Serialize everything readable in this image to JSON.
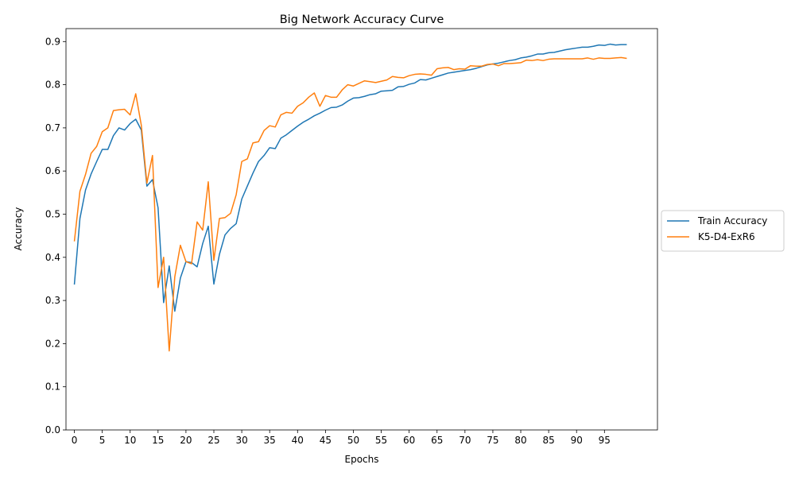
{
  "chart_data": {
    "type": "line",
    "title": "Big Network Accuracy Curve",
    "xlabel": "Epochs",
    "ylabel": "Accuracy",
    "xlim": [
      -1.5,
      104.5
    ],
    "ylim": [
      0.0,
      0.93
    ],
    "x_ticks": [
      0,
      5,
      10,
      15,
      20,
      25,
      30,
      35,
      40,
      45,
      50,
      55,
      60,
      65,
      70,
      75,
      80,
      85,
      90,
      95
    ],
    "y_ticks": [
      0.0,
      0.1,
      0.2,
      0.3,
      0.4,
      0.5,
      0.6,
      0.7,
      0.8,
      0.9
    ],
    "y_tick_labels": [
      "0.0",
      "0.1",
      "0.2",
      "0.3",
      "0.4",
      "0.5",
      "0.6",
      "0.7",
      "0.8",
      "0.9"
    ],
    "grid": false,
    "legend_position": "outside-right",
    "series": [
      {
        "name": "Train Accuracy",
        "color": "#1f77b4",
        "values": [
          0.337,
          0.49,
          0.556,
          0.593,
          0.622,
          0.65,
          0.65,
          0.682,
          0.7,
          0.695,
          0.71,
          0.72,
          0.695,
          0.565,
          0.58,
          0.515,
          0.295,
          0.38,
          0.275,
          0.352,
          0.39,
          0.388,
          0.378,
          0.432,
          0.472,
          0.338,
          0.407,
          0.452,
          0.467,
          0.478,
          0.535,
          0.565,
          0.595,
          0.622,
          0.636,
          0.654,
          0.652,
          0.676,
          0.684,
          0.694,
          0.704,
          0.713,
          0.72,
          0.728,
          0.734,
          0.741,
          0.747,
          0.748,
          0.753,
          0.762,
          0.769,
          0.77,
          0.773,
          0.777,
          0.779,
          0.785,
          0.786,
          0.787,
          0.795,
          0.796,
          0.801,
          0.804,
          0.812,
          0.811,
          0.815,
          0.819,
          0.823,
          0.827,
          0.829,
          0.831,
          0.833,
          0.835,
          0.838,
          0.842,
          0.846,
          0.848,
          0.85,
          0.853,
          0.856,
          0.858,
          0.862,
          0.864,
          0.867,
          0.871,
          0.871,
          0.874,
          0.875,
          0.878,
          0.881,
          0.883,
          0.885,
          0.887,
          0.887,
          0.889,
          0.892,
          0.891,
          0.894,
          0.892,
          0.893,
          0.893
        ]
      },
      {
        "name": "K5-D4-ExR6",
        "color": "#ff7f0e",
        "values": [
          0.437,
          0.553,
          0.592,
          0.641,
          0.657,
          0.691,
          0.7,
          0.74,
          0.742,
          0.743,
          0.73,
          0.779,
          0.706,
          0.572,
          0.636,
          0.33,
          0.4,
          0.183,
          0.355,
          0.428,
          0.39,
          0.385,
          0.482,
          0.463,
          0.575,
          0.393,
          0.49,
          0.492,
          0.502,
          0.545,
          0.622,
          0.628,
          0.665,
          0.668,
          0.694,
          0.705,
          0.702,
          0.73,
          0.736,
          0.734,
          0.75,
          0.758,
          0.771,
          0.781,
          0.75,
          0.775,
          0.771,
          0.771,
          0.788,
          0.8,
          0.797,
          0.803,
          0.809,
          0.807,
          0.805,
          0.808,
          0.811,
          0.819,
          0.817,
          0.816,
          0.821,
          0.824,
          0.825,
          0.824,
          0.822,
          0.837,
          0.839,
          0.84,
          0.835,
          0.837,
          0.836,
          0.844,
          0.843,
          0.843,
          0.847,
          0.848,
          0.844,
          0.849,
          0.849,
          0.85,
          0.851,
          0.857,
          0.856,
          0.858,
          0.856,
          0.859,
          0.86,
          0.86,
          0.86,
          0.86,
          0.86,
          0.86,
          0.862,
          0.859,
          0.862,
          0.861,
          0.861,
          0.862,
          0.863,
          0.861
        ]
      }
    ]
  }
}
